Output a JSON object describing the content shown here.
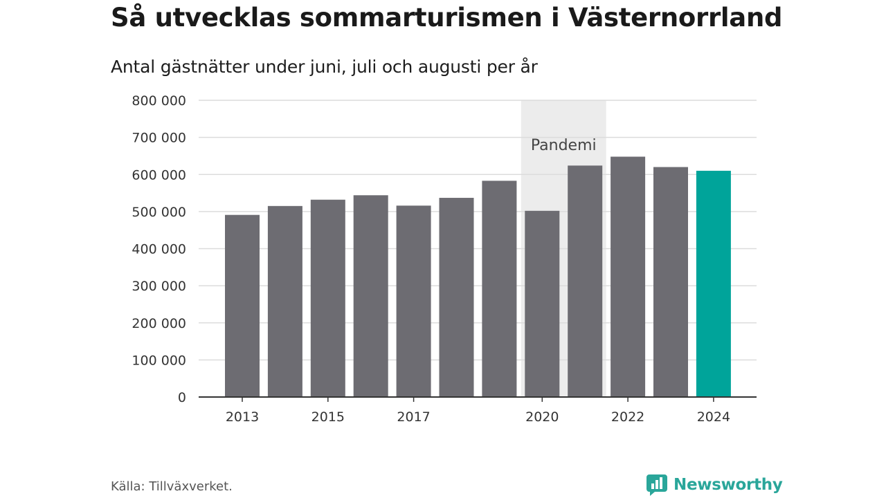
{
  "header": {
    "title": "Så utvecklas sommarturismen i Västernorrland",
    "subtitle": "Antal gästnätter under juni, juli och augusti per år"
  },
  "footer": {
    "source": "Källa: Tillväxverket.",
    "brand": "Newsworthy"
  },
  "colors": {
    "bar": "#6d6c72",
    "highlight": "#00a49a",
    "band": "#ececec",
    "grid": "#dcdcdc",
    "axis": "#333333",
    "brand": "#2aa69a"
  },
  "chart_data": {
    "type": "bar",
    "title": "Så utvecklas sommarturismen i Västernorrland",
    "subtitle": "Antal gästnätter under juni, juli och augusti per år",
    "xlabel": "",
    "ylabel": "",
    "categories": [
      "2013",
      "2014",
      "2015",
      "2016",
      "2017",
      "2018",
      "2019",
      "2020",
      "2021",
      "2022",
      "2023",
      "2024"
    ],
    "values": [
      491000,
      515000,
      532000,
      544000,
      516000,
      537000,
      583000,
      502000,
      624000,
      648000,
      620000,
      610000
    ],
    "highlight_category": "2024",
    "ylim": [
      0,
      800000
    ],
    "yticks": [
      0,
      100000,
      200000,
      300000,
      400000,
      500000,
      600000,
      700000,
      800000
    ],
    "ytick_labels": [
      "0",
      "100 000",
      "200 000",
      "300 000",
      "400 000",
      "500 000",
      "600 000",
      "700 000",
      "800 000"
    ],
    "xtick_labels": [
      "2013",
      "2015",
      "2017",
      "2020",
      "2022",
      "2024"
    ],
    "grid": true,
    "shaded_band": {
      "from": "2020",
      "to": "2021",
      "label": "Pandemi"
    }
  }
}
